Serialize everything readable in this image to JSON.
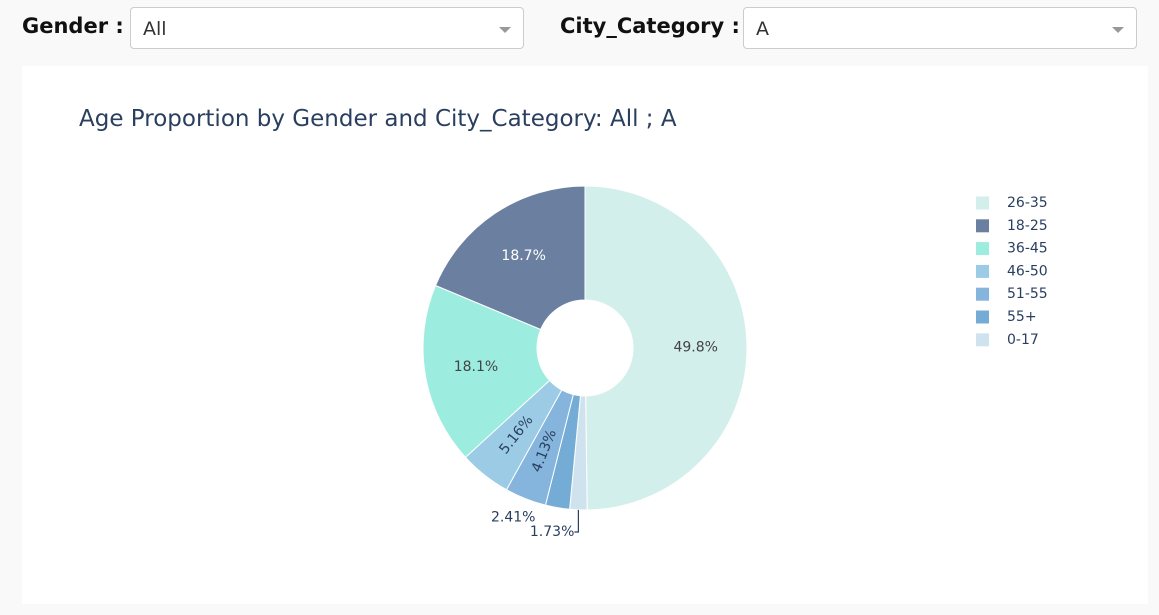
{
  "filters": {
    "gender": {
      "label": "Gender :",
      "value": "All"
    },
    "city": {
      "label": "City_Category :",
      "value": "A"
    }
  },
  "chart_data": {
    "type": "pie",
    "hole": true,
    "title": "Age Proportion by Gender and City_Category: All ; A",
    "legend_position": "right",
    "slices": [
      {
        "label": "26-35",
        "value": 49.8,
        "text": "49.8%",
        "color": "#d2efeb"
      },
      {
        "label": "0-17",
        "value": 1.73,
        "text": "1.73%",
        "color": "#cfe3ef"
      },
      {
        "label": "55+",
        "value": 2.41,
        "text": "2.41%",
        "color": "#75acd6"
      },
      {
        "label": "51-55",
        "value": 4.13,
        "text": "4.13%",
        "color": "#85b4dc"
      },
      {
        "label": "46-50",
        "value": 5.16,
        "text": "5.16%",
        "color": "#9ccbe6"
      },
      {
        "label": "36-45",
        "value": 18.1,
        "text": "18.1%",
        "color": "#9ceddf"
      },
      {
        "label": "18-25",
        "value": 18.7,
        "text": "18.7%",
        "color": "#6b80a1"
      }
    ],
    "legend": [
      {
        "label": "26-35",
        "color": "#d2efeb"
      },
      {
        "label": "18-25",
        "color": "#6b80a1"
      },
      {
        "label": "36-45",
        "color": "#9ceddf"
      },
      {
        "label": "46-50",
        "color": "#9ccbe6"
      },
      {
        "label": "51-55",
        "color": "#85b4dc"
      },
      {
        "label": "55+",
        "color": "#75acd6"
      },
      {
        "label": "0-17",
        "color": "#cfe3ef"
      }
    ]
  }
}
